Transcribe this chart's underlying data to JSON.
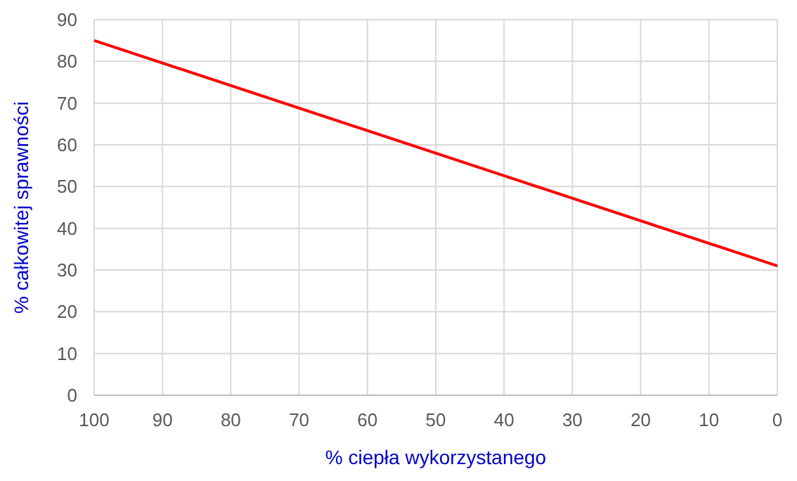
{
  "chart_data": {
    "type": "line",
    "xlabel": "% ciepła wykorzystanego",
    "ylabel": "% całkowitej sprawności",
    "x": [
      100,
      0
    ],
    "series": [
      {
        "color": "#ff0000",
        "values": [
          85,
          31
        ]
      }
    ],
    "xlim": [
      100,
      0
    ],
    "xticks": [
      100,
      90,
      80,
      70,
      60,
      50,
      40,
      30,
      20,
      10,
      0
    ],
    "ylim": [
      0,
      90
    ],
    "yticks": [
      0,
      10,
      20,
      30,
      40,
      50,
      60,
      70,
      80,
      90
    ],
    "grid": true,
    "marker": "none",
    "line_style": "solid"
  }
}
